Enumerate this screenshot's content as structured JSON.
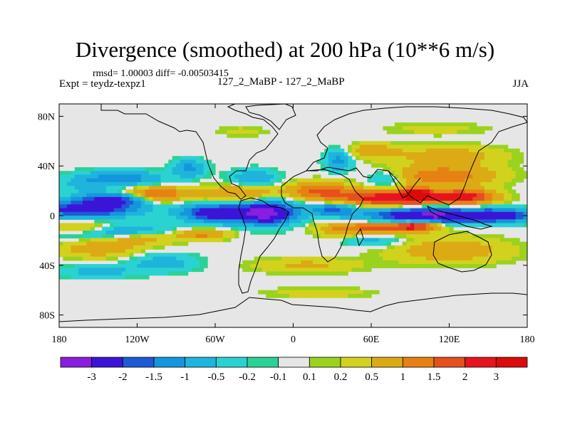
{
  "chart_data": {
    "type": "heatmap",
    "title": "Divergence (smoothed) at 200 hPa (10**6 m/s)",
    "stats": "rmsd= 1.00003 diff= -0.00503415",
    "experiment_label": "Expt = teydz-texpz1",
    "experiment": "127_2_MaBP - 127_2_MaBP",
    "season": "JJA",
    "xlim": [
      -180,
      180
    ],
    "ylim": [
      -90,
      90
    ],
    "x_ticks": [
      {
        "value": -180,
        "label": "180"
      },
      {
        "value": -120,
        "label": "120W"
      },
      {
        "value": -60,
        "label": "60W"
      },
      {
        "value": 0,
        "label": "0"
      },
      {
        "value": 60,
        "label": "60E"
      },
      {
        "value": 120,
        "label": "120E"
      },
      {
        "value": 180,
        "label": "180"
      }
    ],
    "y_ticks": [
      {
        "value": 80,
        "label": "80N"
      },
      {
        "value": 40,
        "label": "40N"
      },
      {
        "value": 0,
        "label": "0"
      },
      {
        "value": -40,
        "label": "40S"
      },
      {
        "value": -80,
        "label": "80S"
      }
    ],
    "colorbar": {
      "levels": [
        "-3",
        "-2",
        "-1.5",
        "-1",
        "-0.5",
        "-0.2",
        "-0.1",
        "0.1",
        "0.2",
        "0.5",
        "1",
        "1.5",
        "2",
        "3"
      ],
      "colors": [
        "#8a1ee0",
        "#3c14d8",
        "#1e5ad8",
        "#1496dc",
        "#1eb4dc",
        "#2ad2d2",
        "#2ad296",
        "#e6e6e6",
        "#9bd21e",
        "#d2d21e",
        "#dcaa14",
        "#e68214",
        "#e6501e",
        "#e6141e",
        "#dc0a0a"
      ]
    },
    "field_blobs": [
      {
        "lon": -160,
        "lat": 5,
        "rlon": 40,
        "rlat": 6,
        "v": -2.6
      },
      {
        "lon": -135,
        "lat": 13,
        "rlon": 30,
        "rlat": 5,
        "v": -2.4
      },
      {
        "lon": -60,
        "lat": 2,
        "rlon": 25,
        "rlat": 7,
        "v": -2.7
      },
      {
        "lon": -20,
        "lat": 2,
        "rlon": 22,
        "rlat": 9,
        "v": -3.4
      },
      {
        "lon": 30,
        "lat": 5,
        "rlon": 18,
        "rlat": 5,
        "v": -1.6
      },
      {
        "lon": 105,
        "lat": 0,
        "rlon": 45,
        "rlat": 6,
        "v": -3.3
      },
      {
        "lon": 160,
        "lat": 0,
        "rlon": 25,
        "rlat": 5,
        "v": -2.3
      },
      {
        "lon": -130,
        "lat": 30,
        "rlon": 30,
        "rlat": 6,
        "v": -1.3
      },
      {
        "lon": -140,
        "lat": -12,
        "rlon": 40,
        "rlat": 6,
        "v": -1.5
      },
      {
        "lon": -80,
        "lat": 38,
        "rlon": 12,
        "rlat": 7,
        "v": -1.2
      },
      {
        "lon": -30,
        "lat": 30,
        "rlon": 18,
        "rlat": 7,
        "v": -1.0
      },
      {
        "lon": 35,
        "lat": 45,
        "rlon": 10,
        "rlat": 9,
        "v": -1.2
      },
      {
        "lon": 70,
        "lat": 30,
        "rlon": 14,
        "rlat": 6,
        "v": -0.8
      },
      {
        "lon": -160,
        "lat": 25,
        "rlon": 20,
        "rlat": 8,
        "v": -0.6
      },
      {
        "lon": -150,
        "lat": -45,
        "rlon": 30,
        "rlat": 5,
        "v": -0.7
      },
      {
        "lon": 60,
        "lat": -20,
        "rlon": 25,
        "rlat": 5,
        "v": -0.7
      },
      {
        "lon": -100,
        "lat": -38,
        "rlon": 25,
        "rlat": 7,
        "v": -0.8
      },
      {
        "lon": -110,
        "lat": 15,
        "rlon": 20,
        "rlat": 6,
        "v": 1.3
      },
      {
        "lon": -100,
        "lat": 18,
        "rlon": 30,
        "rlat": 6,
        "v": 0.9
      },
      {
        "lon": -40,
        "lat": 18,
        "rlon": 25,
        "rlat": 7,
        "v": 1.1
      },
      {
        "lon": 20,
        "lat": 20,
        "rlon": 25,
        "rlat": 7,
        "v": 1.6
      },
      {
        "lon": 70,
        "lat": 14,
        "rlon": 35,
        "rlat": 6,
        "v": 2.4
      },
      {
        "lon": 95,
        "lat": 17,
        "rlon": 10,
        "rlat": 5,
        "v": 3.2
      },
      {
        "lon": 130,
        "lat": 15,
        "rlon": 25,
        "rlat": 6,
        "v": 2.4
      },
      {
        "lon": 115,
        "lat": 32,
        "rlon": 40,
        "rlat": 8,
        "v": 1.4
      },
      {
        "lon": 120,
        "lat": 48,
        "rlon": 40,
        "rlat": 8,
        "v": 0.8
      },
      {
        "lon": 60,
        "lat": 52,
        "rlon": 22,
        "rlat": 6,
        "v": 0.8
      },
      {
        "lon": -160,
        "lat": -10,
        "rlon": 30,
        "rlat": 5,
        "v": 1.4
      },
      {
        "lon": -120,
        "lat": -18,
        "rlon": 30,
        "rlat": 6,
        "v": 0.8
      },
      {
        "lon": -150,
        "lat": -27,
        "rlon": 30,
        "rlat": 7,
        "v": 0.8
      },
      {
        "lon": -70,
        "lat": -15,
        "rlon": 20,
        "rlat": 4,
        "v": 1.2
      },
      {
        "lon": 60,
        "lat": -10,
        "rlon": 35,
        "rlat": 5,
        "v": 1.6
      },
      {
        "lon": 95,
        "lat": -8,
        "rlon": 18,
        "rlat": 4,
        "v": 2.2
      },
      {
        "lon": 120,
        "lat": -28,
        "rlon": 45,
        "rlat": 10,
        "v": 0.9
      },
      {
        "lon": 10,
        "lat": -40,
        "rlon": 40,
        "rlat": 6,
        "v": 0.6
      },
      {
        "lon": 20,
        "lat": -62,
        "rlon": 40,
        "rlat": 4,
        "v": 0.4
      },
      {
        "lon": 35,
        "lat": -15,
        "rlon": 15,
        "rlat": 6,
        "v": 0.4
      },
      {
        "lon": 110,
        "lat": 70,
        "rlon": 40,
        "rlat": 5,
        "v": 0.3
      },
      {
        "lon": -40,
        "lat": 68,
        "rlon": 20,
        "rlat": 4,
        "v": 0.3
      }
    ]
  }
}
